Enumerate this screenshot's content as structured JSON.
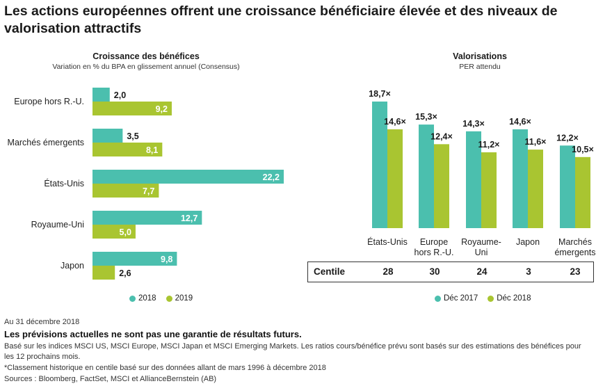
{
  "headline": "Les actions européennes offrent une croissance bénéficiaire élevée et des niveaux de valorisation attractifs",
  "colors": {
    "series_a": "#4bbfae",
    "series_b": "#a9c531"
  },
  "chart_data": [
    {
      "type": "bar",
      "orientation": "horizontal",
      "title": "Croissance des bénéfices",
      "subtitle": "Variation en % du BPA en glissement annuel (Consensus)",
      "categories": [
        "Europe hors R.-U.",
        "Marchés émergents",
        "États-Unis",
        "Royaume-Uni",
        "Japon"
      ],
      "series": [
        {
          "name": "2018",
          "values": [
            2.0,
            3.5,
            22.2,
            12.7,
            9.8
          ],
          "labels": [
            "2,0",
            "3,5",
            "22,2",
            "12,7",
            "9,8"
          ]
        },
        {
          "name": "2019",
          "values": [
            9.2,
            8.1,
            7.7,
            5.0,
            2.6
          ],
          "labels": [
            "9,2",
            "8,1",
            "7,7",
            "5,0",
            "2,6"
          ]
        }
      ],
      "xlim": [
        0,
        22.2
      ],
      "legend": "bottom"
    },
    {
      "type": "bar",
      "orientation": "vertical",
      "title": "Valorisations",
      "subtitle": "PER attendu",
      "categories": [
        [
          "États-Unis"
        ],
        [
          "Europe",
          "hors R.-U."
        ],
        [
          "Royaume-",
          "Uni"
        ],
        [
          "Japon"
        ],
        [
          "Marchés",
          "émergents"
        ]
      ],
      "series": [
        {
          "name": "Déc 2017",
          "values": [
            18.7,
            15.3,
            14.3,
            14.6,
            12.2
          ],
          "labels": [
            "18,7×",
            "15,3×",
            "14,3×",
            "14,6×",
            "12,2×"
          ]
        },
        {
          "name": "Déc 2018",
          "values": [
            14.6,
            12.4,
            11.2,
            11.6,
            10.5
          ],
          "labels": [
            "14,6×",
            "12,4×",
            "11,2×",
            "11,6×",
            "10,5×"
          ]
        }
      ],
      "legend": "bottom",
      "centile": {
        "label": "Centile",
        "values": [
          "28",
          "30",
          "24",
          "3",
          "23"
        ]
      }
    }
  ],
  "footer": {
    "date": "Au 31 décembre 2018",
    "warning": "Les prévisions actuelles ne sont pas une garantie de résultats futurs.",
    "note1a": "Basé sur les indices MSCI US, MSCI Europe, MSCI Japan et MSCI Emerging Markets. Les ratios cours/bénéfice prévu sont basés sur des estimations des bénéfices pour",
    "note1b": "les 12 prochains mois.",
    "note2": "*Classement historique en centile basé sur des données allant de mars 1996 à décembre 2018",
    "note3": "Sources : Bloomberg, FactSet, MSCI et AllianceBernstein (AB)"
  }
}
